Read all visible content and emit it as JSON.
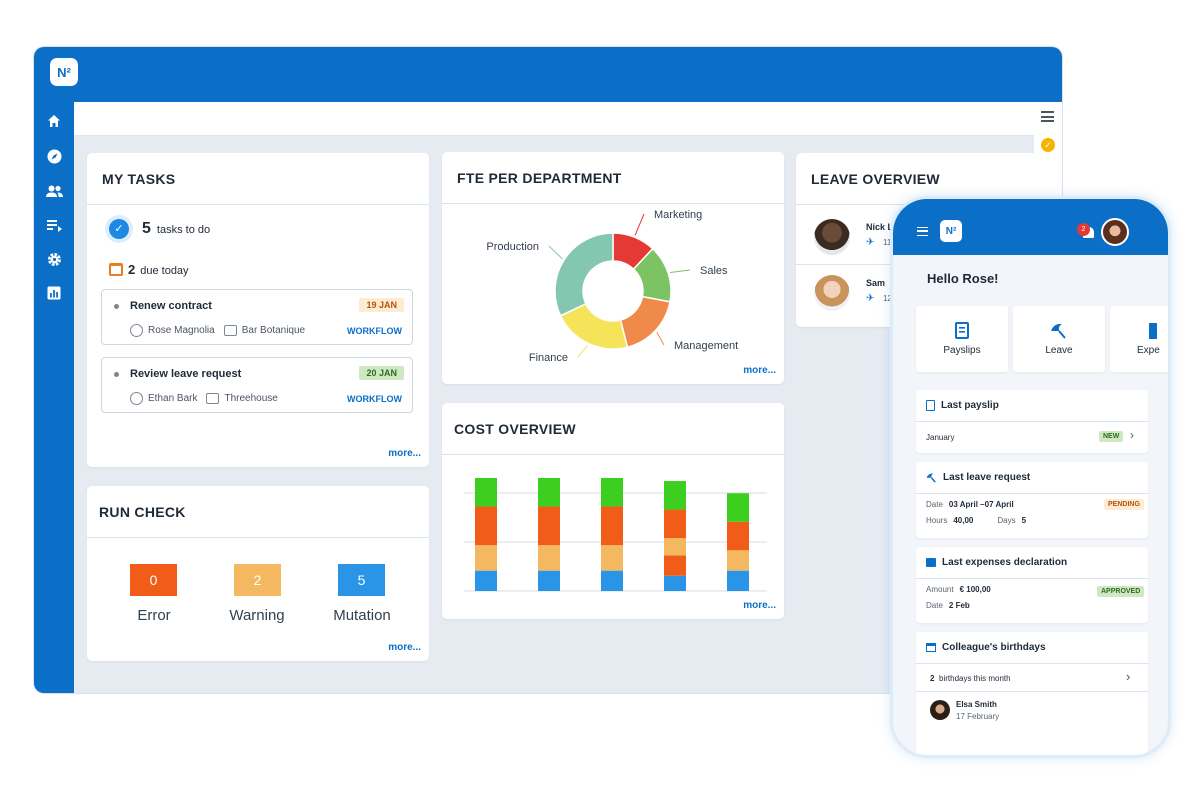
{
  "app": {
    "logo_text": "N²",
    "accent": "#0b6fc7"
  },
  "sidebar": {
    "items": [
      {
        "name": "home-icon"
      },
      {
        "name": "compass-icon"
      },
      {
        "name": "users-icon"
      },
      {
        "name": "list-icon"
      },
      {
        "name": "gear-icon"
      },
      {
        "name": "chart-icon"
      }
    ]
  },
  "my_tasks": {
    "title": "MY TASKS",
    "todo_count": "5",
    "todo_label": "tasks to do",
    "due_count": "2",
    "due_label": "due today",
    "tasks": [
      {
        "title": "Renew contract",
        "date": "19 JAN",
        "date_bg": "#fdebd3",
        "date_fg": "#b45309",
        "person": "Rose Magnolia",
        "place": "Bar Botanique",
        "tag": "WORKFLOW"
      },
      {
        "title": "Review leave request",
        "date": "20 JAN",
        "date_bg": "#cfe8c4",
        "date_fg": "#2f6b22",
        "person": "Ethan Bark",
        "place": "Threehouse",
        "tag": "WORKFLOW"
      }
    ],
    "more": "more..."
  },
  "fte": {
    "title": "FTE PER DEPARTMENT",
    "more": "more...",
    "chart_data": {
      "type": "pie",
      "labels": [
        "Marketing",
        "Sales",
        "Management",
        "Finance",
        "Production"
      ],
      "values": [
        12,
        16,
        18,
        22,
        32
      ],
      "colors": [
        "#e53935",
        "#7cc363",
        "#f08a4b",
        "#f5e45a",
        "#84c7b0"
      ]
    }
  },
  "leave": {
    "title": "LEAVE OVERVIEW",
    "people": [
      {
        "name": "Nick Le",
        "value": "11"
      },
      {
        "name": "Sam",
        "value": "12"
      }
    ]
  },
  "run_check": {
    "title": "RUN CHECK",
    "items": [
      {
        "value": "0",
        "label": "Error",
        "color": "#f25c19"
      },
      {
        "value": "2",
        "label": "Warning",
        "color": "#f4b860"
      },
      {
        "value": "5",
        "label": "Mutation",
        "color": "#2a95e6"
      }
    ],
    "more": "more..."
  },
  "cost": {
    "title": "COST OVERVIEW",
    "more": "more...",
    "chart_data": {
      "type": "bar",
      "stacked": true,
      "categories": [
        "",
        "",
        "",
        "",
        ""
      ],
      "series": [
        {
          "color": "#2a95e6",
          "values": [
            20,
            20,
            20,
            15,
            20
          ]
        },
        {
          "color": "#f25c19",
          "values": [
            0,
            0,
            0,
            20,
            0
          ]
        },
        {
          "color": "#f4b860",
          "values": [
            25,
            25,
            25,
            17,
            20
          ]
        },
        {
          "color": "#f25c19",
          "values": [
            38,
            38,
            38,
            28,
            28
          ]
        },
        {
          "color": "#3ccf1f",
          "values": [
            28,
            28,
            28,
            28,
            28
          ]
        }
      ]
    }
  },
  "phone": {
    "logo_text": "N²",
    "notif_count": "2",
    "greeting": "Hello Rose!",
    "tiles": [
      {
        "label": "Payslips",
        "icon": "payslip-icon"
      },
      {
        "label": "Leave",
        "icon": "umbrella-icon"
      },
      {
        "label": "Expe",
        "icon": "expense-icon"
      }
    ],
    "last_payslip": {
      "title": "Last payslip",
      "month": "January",
      "badge": "NEW"
    },
    "last_leave": {
      "title": "Last leave request",
      "date_label": "Date",
      "date": "03 April –07 April",
      "status": "PENDING",
      "hours_label": "Hours",
      "hours": "40,00",
      "days_label": "Days",
      "days": "5"
    },
    "expenses": {
      "title": "Last expenses declaration",
      "amount_label": "Amount",
      "amount": "€ 100,00",
      "status": "APPROVED",
      "date_label": "Date",
      "date": "2 Feb"
    },
    "birthdays": {
      "title": "Colleague's birthdays",
      "count": "2",
      "count_label": "birthdays this month",
      "person": "Elsa Smith",
      "date": "17 February"
    }
  }
}
